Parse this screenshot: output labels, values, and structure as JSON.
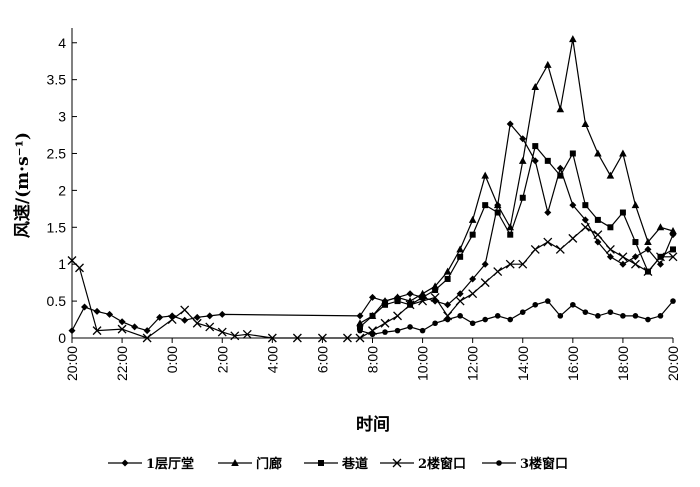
{
  "chart_data": {
    "type": "line",
    "xlabel": "时间",
    "ylabel": "风速/(m·s⁻¹)",
    "ylim": [
      0,
      4.2
    ],
    "y_ticks": [
      "0",
      "0.5",
      "1",
      "1.5",
      "2",
      "2.5",
      "3",
      "3.5",
      "4"
    ],
    "y_tick_values": [
      0,
      0.5,
      1,
      1.5,
      2,
      2.5,
      3,
      3.5,
      4
    ],
    "x_ticks": [
      "20:00",
      "22:00",
      "0:00",
      "2:00",
      "4:00",
      "6:00",
      "8:00",
      "10:00",
      "12:00",
      "14:00",
      "16:00",
      "18:00",
      "20:00"
    ],
    "x_range_hours": [
      0,
      24
    ],
    "grid": false,
    "legend_position": "bottom",
    "series": [
      {
        "name": "1层厅堂",
        "marker": "diamond",
        "x": [
          0,
          0.5,
          1,
          1.5,
          2,
          2.5,
          3,
          3.5,
          4,
          4.5,
          5,
          5.5,
          6,
          11.5,
          12,
          12.5,
          13,
          13.5,
          14,
          14.5,
          15,
          15.5,
          16,
          16.5,
          17,
          17.5,
          18,
          18.5,
          19,
          19.5,
          20,
          20.5,
          21,
          21.5,
          22,
          22.5,
          23,
          23.5,
          24
        ],
        "y": [
          0.1,
          0.42,
          0.36,
          0.32,
          0.22,
          0.15,
          0.1,
          0.28,
          0.3,
          0.24,
          0.28,
          0.3,
          0.32,
          0.3,
          0.55,
          0.5,
          0.55,
          0.6,
          0.55,
          0.5,
          0.45,
          0.6,
          0.8,
          1.0,
          1.8,
          2.9,
          2.7,
          2.4,
          1.7,
          2.3,
          1.8,
          1.6,
          1.3,
          1.1,
          1.0,
          1.1,
          1.2,
          1.0,
          1.4
        ]
      },
      {
        "name": "门廊",
        "marker": "triangle",
        "x": [
          11.5,
          12,
          12.5,
          13,
          13.5,
          14,
          14.5,
          15,
          15.5,
          16,
          16.5,
          17,
          17.5,
          18,
          18.5,
          19,
          19.5,
          20,
          20.5,
          21,
          21.5,
          22,
          22.5,
          23,
          23.5,
          24
        ],
        "y": [
          0.2,
          0.3,
          0.5,
          0.55,
          0.5,
          0.6,
          0.7,
          0.9,
          1.2,
          1.6,
          2.2,
          1.8,
          1.5,
          2.4,
          3.4,
          3.7,
          3.1,
          4.05,
          2.9,
          2.5,
          2.2,
          2.5,
          1.8,
          1.3,
          1.5,
          1.45
        ]
      },
      {
        "name": "巷道",
        "marker": "square",
        "x": [
          11.5,
          12,
          12.5,
          13,
          13.5,
          14,
          14.5,
          15,
          15.5,
          16,
          16.5,
          17,
          17.5,
          18,
          18.5,
          19,
          19.5,
          20,
          20.5,
          21,
          21.5,
          22,
          22.5,
          23,
          23.5,
          24
        ],
        "y": [
          0.15,
          0.3,
          0.45,
          0.5,
          0.45,
          0.55,
          0.65,
          0.8,
          1.1,
          1.4,
          1.8,
          1.7,
          1.4,
          1.9,
          2.6,
          2.4,
          2.2,
          2.5,
          1.8,
          1.6,
          1.5,
          1.7,
          1.3,
          0.9,
          1.1,
          1.2
        ]
      },
      {
        "name": "2楼窗口",
        "marker": "x",
        "x": [
          0,
          0.3,
          1,
          2,
          3,
          4,
          4.5,
          5,
          5.5,
          6,
          6.5,
          7,
          8,
          9,
          10,
          11,
          11.5,
          12,
          12.5,
          13,
          13.5,
          14,
          14.5,
          15,
          15.5,
          16,
          16.5,
          17,
          17.5,
          18,
          18.5,
          19,
          19.5,
          20,
          20.5,
          21,
          21.5,
          22,
          22.5,
          23,
          23.5,
          24
        ],
        "y": [
          1.05,
          0.95,
          0.1,
          0.12,
          0.0,
          0.25,
          0.38,
          0.2,
          0.15,
          0.08,
          0.03,
          0.05,
          0.0,
          0.0,
          0.0,
          0.0,
          0.0,
          0.1,
          0.2,
          0.3,
          0.45,
          0.5,
          0.55,
          0.3,
          0.5,
          0.6,
          0.75,
          0.9,
          1.0,
          1.0,
          1.2,
          1.3,
          1.2,
          1.35,
          1.5,
          1.4,
          1.2,
          1.1,
          1.0,
          0.9,
          1.1,
          1.1
        ]
      },
      {
        "name": "3楼窗口",
        "marker": "circle",
        "x": [
          11.5,
          12,
          12.5,
          13,
          13.5,
          14,
          14.5,
          15,
          15.5,
          16,
          16.5,
          17,
          17.5,
          18,
          18.5,
          19,
          19.5,
          20,
          20.5,
          21,
          21.5,
          22,
          22.5,
          23,
          23.5,
          24
        ],
        "y": [
          0.1,
          0.05,
          0.08,
          0.1,
          0.15,
          0.1,
          0.2,
          0.25,
          0.3,
          0.2,
          0.25,
          0.3,
          0.25,
          0.35,
          0.45,
          0.5,
          0.3,
          0.45,
          0.35,
          0.3,
          0.35,
          0.3,
          0.3,
          0.25,
          0.3,
          0.5
        ]
      }
    ]
  }
}
